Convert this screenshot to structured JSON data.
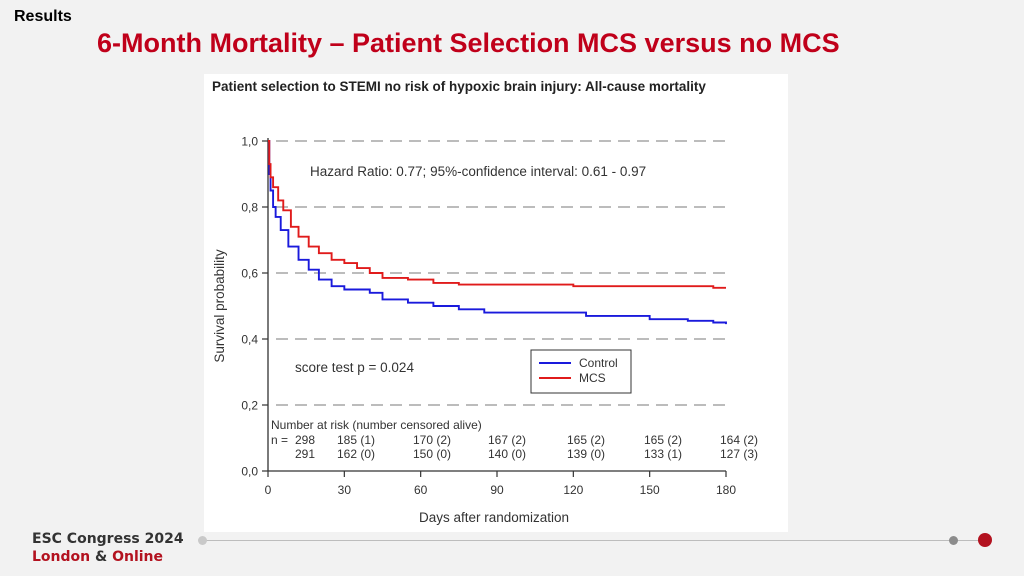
{
  "header": {
    "section": "Results",
    "title": "6-Month Mortality – Patient Selection MCS versus no MCS"
  },
  "footer": {
    "line1": "ESC Congress 2024",
    "line2_city": "London",
    "line2_amp": "&",
    "line2_rest": "Online"
  },
  "colors": {
    "title": "#c0001a",
    "control": "#1a1adc",
    "mcs": "#e01b1b",
    "brand_red": "#b3121f"
  },
  "chart_data": {
    "type": "line",
    "title": "Patient selection to STEMI no risk of hypoxic brain injury: All-cause mortality",
    "xlabel": "Days after randomization",
    "ylabel": "Survival probability",
    "xlim": [
      0,
      180
    ],
    "ylim": [
      0,
      1
    ],
    "x_ticks": [
      "0",
      "30",
      "60",
      "90",
      "120",
      "150",
      "180"
    ],
    "y_ticks": [
      "0,0",
      "0,2",
      "0,4",
      "0,6",
      "0,8",
      "1,0"
    ],
    "dashed_gridlines": [
      0.2,
      0.4,
      0.6,
      0.8,
      1.0
    ],
    "annotations": {
      "hazard_ratio": "Hazard Ratio: 0.77; 95%-confidence interval: 0.61 - 0.97",
      "score_test": "score test p = 0.024"
    },
    "legend": {
      "placement": "right-middle",
      "entries": [
        "Control",
        "MCS"
      ]
    },
    "series": [
      {
        "name": "Control",
        "points": [
          [
            0,
            1.0
          ],
          [
            0.5,
            0.9
          ],
          [
            1,
            0.85
          ],
          [
            2,
            0.8
          ],
          [
            3,
            0.77
          ],
          [
            5,
            0.73
          ],
          [
            8,
            0.68
          ],
          [
            12,
            0.64
          ],
          [
            16,
            0.61
          ],
          [
            20,
            0.58
          ],
          [
            25,
            0.56
          ],
          [
            30,
            0.55
          ],
          [
            35,
            0.55
          ],
          [
            40,
            0.54
          ],
          [
            45,
            0.52
          ],
          [
            55,
            0.51
          ],
          [
            65,
            0.5
          ],
          [
            75,
            0.49
          ],
          [
            85,
            0.48
          ],
          [
            100,
            0.48
          ],
          [
            115,
            0.48
          ],
          [
            125,
            0.47
          ],
          [
            140,
            0.47
          ],
          [
            150,
            0.46
          ],
          [
            165,
            0.455
          ],
          [
            175,
            0.45
          ],
          [
            180,
            0.445
          ]
        ]
      },
      {
        "name": "MCS",
        "points": [
          [
            0,
            1.0
          ],
          [
            0.5,
            0.93
          ],
          [
            1,
            0.89
          ],
          [
            2,
            0.86
          ],
          [
            4,
            0.82
          ],
          [
            6,
            0.79
          ],
          [
            9,
            0.74
          ],
          [
            12,
            0.71
          ],
          [
            16,
            0.68
          ],
          [
            20,
            0.66
          ],
          [
            25,
            0.64
          ],
          [
            30,
            0.63
          ],
          [
            35,
            0.615
          ],
          [
            40,
            0.6
          ],
          [
            45,
            0.585
          ],
          [
            55,
            0.58
          ],
          [
            65,
            0.57
          ],
          [
            75,
            0.565
          ],
          [
            90,
            0.565
          ],
          [
            105,
            0.565
          ],
          [
            120,
            0.56
          ],
          [
            135,
            0.56
          ],
          [
            150,
            0.56
          ],
          [
            165,
            0.56
          ],
          [
            175,
            0.555
          ],
          [
            180,
            0.555
          ]
        ]
      }
    ],
    "risk_table": {
      "header": "Number at risk (number censored alive)",
      "label_prefix": "n = ",
      "rows": [
        [
          "298",
          "185 (1)",
          "170 (2)",
          "167 (2)",
          "165 (2)",
          "165 (2)",
          "164 (2)"
        ],
        [
          "291",
          "162 (0)",
          "150 (0)",
          "140 (0)",
          "139 (0)",
          "133 (1)",
          "127 (3)"
        ]
      ]
    }
  }
}
